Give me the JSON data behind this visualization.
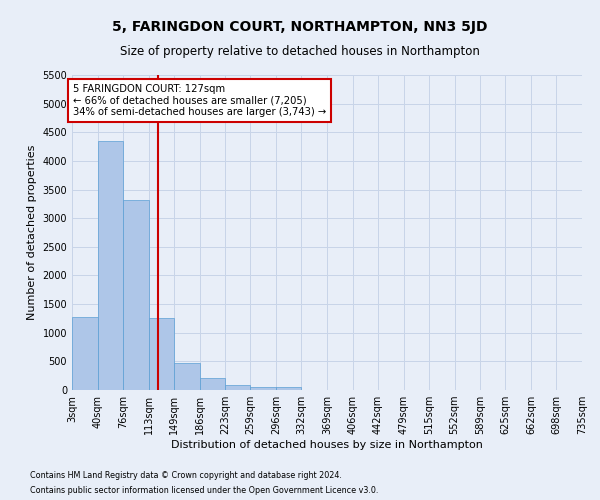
{
  "title": "5, FARINGDON COURT, NORTHAMPTON, NN3 5JD",
  "subtitle": "Size of property relative to detached houses in Northampton",
  "xlabel": "Distribution of detached houses by size in Northampton",
  "ylabel": "Number of detached properties",
  "footnote1": "Contains HM Land Registry data © Crown copyright and database right 2024.",
  "footnote2": "Contains public sector information licensed under the Open Government Licence v3.0.",
  "bin_edges": [
    3,
    40,
    76,
    113,
    149,
    186,
    223,
    259,
    296,
    332,
    369,
    406,
    442,
    479,
    515,
    552,
    589,
    625,
    662,
    698,
    735
  ],
  "bar_heights": [
    1270,
    4350,
    3310,
    1260,
    480,
    215,
    90,
    55,
    55,
    0,
    0,
    0,
    0,
    0,
    0,
    0,
    0,
    0,
    0,
    0
  ],
  "bar_color": "#aec6e8",
  "bar_edge_color": "#5a9fd4",
  "property_size": 127,
  "vline_color": "#cc0000",
  "annotation_line1": "5 FARINGDON COURT: 127sqm",
  "annotation_line2": "← 66% of detached houses are smaller (7,205)",
  "annotation_line3": "34% of semi-detached houses are larger (3,743) →",
  "annotation_box_color": "#ffffff",
  "annotation_box_edge": "#cc0000",
  "ylim": [
    0,
    5500
  ],
  "yticks": [
    0,
    500,
    1000,
    1500,
    2000,
    2500,
    3000,
    3500,
    4000,
    4500,
    5000,
    5500
  ],
  "grid_color": "#c8d4e8",
  "background_color": "#e8eef8",
  "title_fontsize": 10,
  "subtitle_fontsize": 8.5,
  "tick_fontsize": 7,
  "ylabel_fontsize": 8,
  "xlabel_fontsize": 8
}
